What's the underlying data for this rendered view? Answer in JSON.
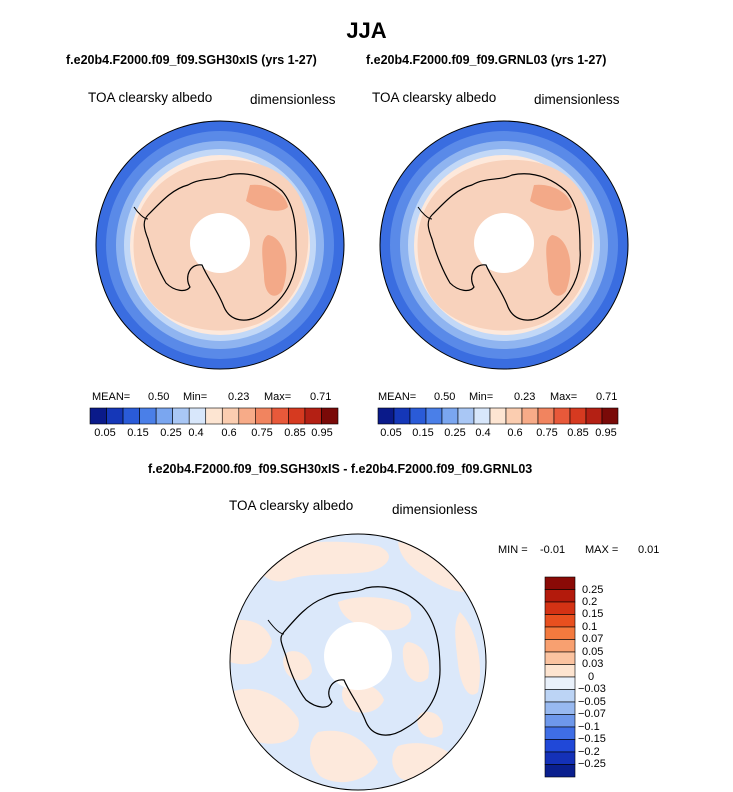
{
  "figure": {
    "season": "JJA"
  },
  "left_panel": {
    "case": "f.e20b4.F2000.f09_f09.SGH30xIS (yrs 1-27)",
    "variable": "TOA clearsky albedo",
    "units": "dimensionless",
    "mean_label": "MEAN=",
    "mean": "0.50",
    "min_label": "Min=",
    "min": "0.23",
    "max_label": "Max=",
    "max": "0.71"
  },
  "right_panel": {
    "case": "f.e20b4.F2000.f09_f09.GRNL03 (yrs 1-27)",
    "variable": "TOA clearsky albedo",
    "units": "dimensionless",
    "mean_label": "MEAN=",
    "mean": "0.50",
    "min_label": "Min=",
    "min": "0.23",
    "max_label": "Max=",
    "max": "0.71"
  },
  "colorbar_top": {
    "tick_labels": [
      "0.05",
      "0.15",
      "0.25",
      "0.4",
      "0.6",
      "0.75",
      "0.85",
      "0.95"
    ],
    "colors": [
      "#0a1a8a",
      "#1537b8",
      "#2a5bd8",
      "#4a7fe8",
      "#7aa6f0",
      "#a9c7f5",
      "#d8e7fb",
      "#fde5d2",
      "#fbcdb0",
      "#f7ab88",
      "#f1845f",
      "#e8593a",
      "#d63a20",
      "#b42014",
      "#7a0a08"
    ]
  },
  "diff_panel": {
    "title": "f.e20b4.F2000.f09_f09.SGH30xIS - f.e20b4.F2000.f09_f09.GRNL03",
    "variable": "TOA clearsky albedo",
    "units": "dimensionless",
    "min_label": "MIN =",
    "min": "-0.01",
    "max_label": "MAX =",
    "max": "0.01"
  },
  "colorbar_diff": {
    "labels_top_to_bottom": [
      "0.25",
      "0.2",
      "0.15",
      "0.1",
      "0.07",
      "0.05",
      "0.03",
      "0",
      "−0.03",
      "−0.05",
      "−0.07",
      "−0.1",
      "−0.15",
      "−0.2",
      "−0.25"
    ],
    "colors_top_to_bottom": [
      "#8a0a06",
      "#b31a0c",
      "#d43214",
      "#e8501f",
      "#f47a3e",
      "#f8a070",
      "#fbc3a0",
      "#fde4d0",
      "#e9f1fb",
      "#bcd4f5",
      "#98b9f0",
      "#6e98eb",
      "#3f6ee6",
      "#2048d8",
      "#1431b8",
      "#0a1f8e"
    ]
  }
}
